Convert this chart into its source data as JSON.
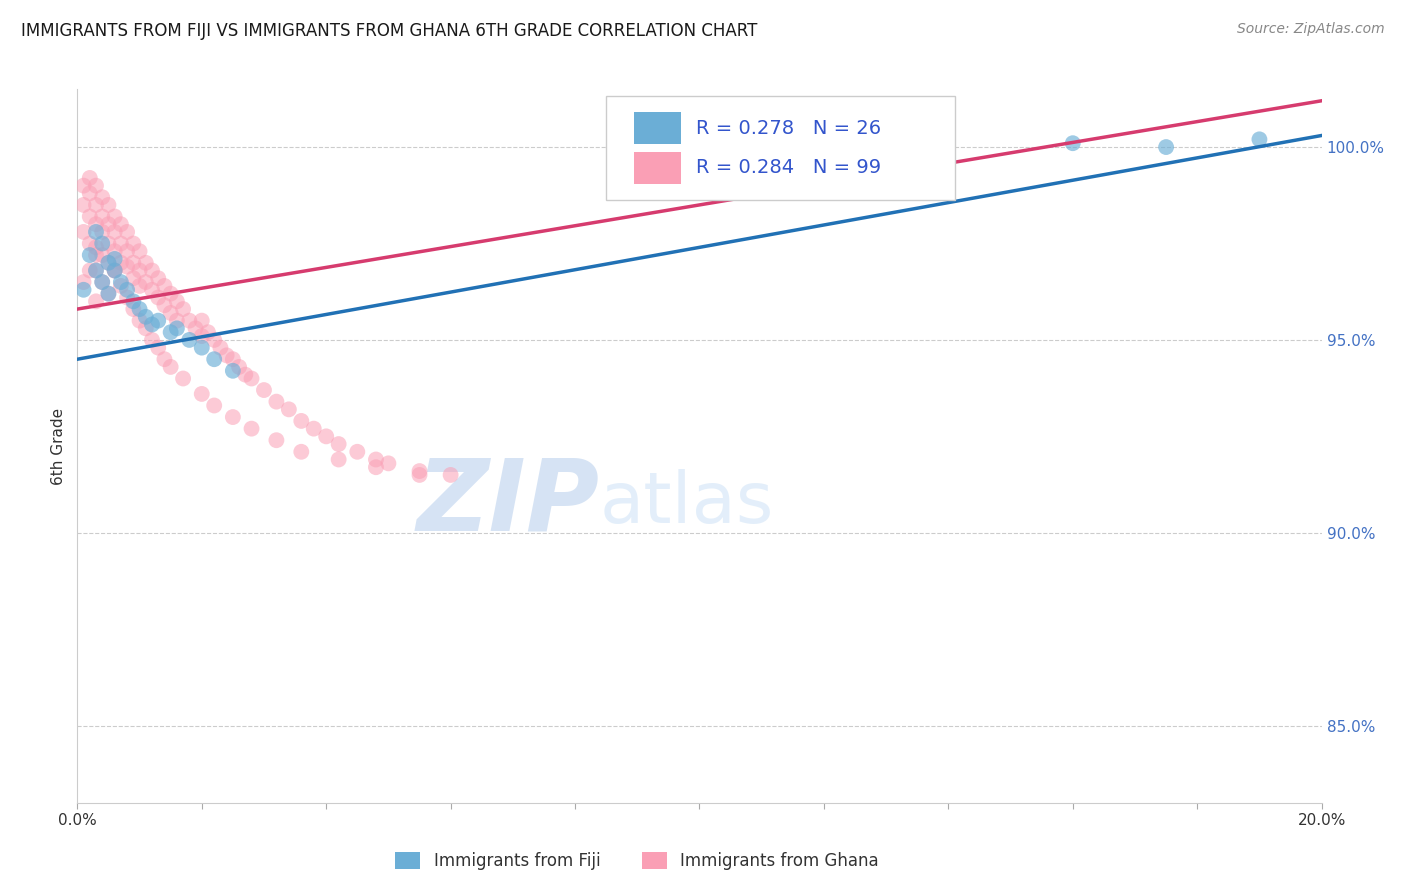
{
  "title": "IMMIGRANTS FROM FIJI VS IMMIGRANTS FROM GHANA 6TH GRADE CORRELATION CHART",
  "source": "Source: ZipAtlas.com",
  "ylabel": "6th Grade",
  "y_ticks": [
    85.0,
    90.0,
    95.0,
    100.0
  ],
  "y_tick_labels": [
    "85.0%",
    "90.0%",
    "95.0%",
    "100.0%"
  ],
  "fiji_color": "#6baed6",
  "ghana_color": "#fa9fb5",
  "fiji_line_color": "#2171b5",
  "ghana_line_color": "#d63b6e",
  "fiji_R": 0.278,
  "fiji_N": 26,
  "ghana_R": 0.284,
  "ghana_N": 99,
  "watermark_zip": "ZIP",
  "watermark_atlas": "atlas",
  "xmin": 0.0,
  "xmax": 0.2,
  "ymin": 83.0,
  "ymax": 101.5,
  "fiji_line_x0": 0.0,
  "fiji_line_x1": 0.2,
  "fiji_line_y0": 94.5,
  "fiji_line_y1": 100.3,
  "ghana_line_x0": 0.0,
  "ghana_line_x1": 0.2,
  "ghana_line_y0": 95.8,
  "ghana_line_y1": 101.2,
  "fiji_scatter_x": [
    0.001,
    0.002,
    0.003,
    0.003,
    0.004,
    0.004,
    0.005,
    0.005,
    0.006,
    0.006,
    0.007,
    0.008,
    0.009,
    0.01,
    0.011,
    0.012,
    0.013,
    0.015,
    0.016,
    0.018,
    0.02,
    0.022,
    0.025,
    0.16,
    0.175,
    0.19
  ],
  "fiji_scatter_y": [
    96.3,
    97.2,
    97.8,
    96.8,
    97.5,
    96.5,
    97.0,
    96.2,
    96.8,
    97.1,
    96.5,
    96.3,
    96.0,
    95.8,
    95.6,
    95.4,
    95.5,
    95.2,
    95.3,
    95.0,
    94.8,
    94.5,
    94.2,
    100.1,
    100.0,
    100.2
  ],
  "ghana_scatter_x": [
    0.001,
    0.001,
    0.001,
    0.002,
    0.002,
    0.002,
    0.002,
    0.003,
    0.003,
    0.003,
    0.003,
    0.003,
    0.004,
    0.004,
    0.004,
    0.004,
    0.005,
    0.005,
    0.005,
    0.005,
    0.006,
    0.006,
    0.006,
    0.006,
    0.007,
    0.007,
    0.007,
    0.008,
    0.008,
    0.008,
    0.009,
    0.009,
    0.009,
    0.01,
    0.01,
    0.01,
    0.011,
    0.011,
    0.012,
    0.012,
    0.013,
    0.013,
    0.014,
    0.014,
    0.015,
    0.015,
    0.016,
    0.016,
    0.017,
    0.018,
    0.019,
    0.02,
    0.02,
    0.021,
    0.022,
    0.023,
    0.024,
    0.025,
    0.026,
    0.027,
    0.028,
    0.03,
    0.032,
    0.034,
    0.036,
    0.038,
    0.04,
    0.042,
    0.045,
    0.048,
    0.05,
    0.055,
    0.06,
    0.001,
    0.002,
    0.003,
    0.003,
    0.004,
    0.005,
    0.006,
    0.007,
    0.008,
    0.009,
    0.01,
    0.011,
    0.012,
    0.013,
    0.014,
    0.015,
    0.017,
    0.02,
    0.022,
    0.025,
    0.028,
    0.032,
    0.036,
    0.042,
    0.048,
    0.055
  ],
  "ghana_scatter_y": [
    99.0,
    98.5,
    97.8,
    99.2,
    98.8,
    98.2,
    97.5,
    99.0,
    98.5,
    98.0,
    97.4,
    96.8,
    98.7,
    98.2,
    97.8,
    97.2,
    98.5,
    98.0,
    97.5,
    97.0,
    98.2,
    97.8,
    97.3,
    96.8,
    98.0,
    97.5,
    97.0,
    97.8,
    97.3,
    96.9,
    97.5,
    97.0,
    96.6,
    97.3,
    96.8,
    96.4,
    97.0,
    96.5,
    96.8,
    96.3,
    96.6,
    96.1,
    96.4,
    95.9,
    96.2,
    95.7,
    96.0,
    95.5,
    95.8,
    95.5,
    95.3,
    95.5,
    95.1,
    95.2,
    95.0,
    94.8,
    94.6,
    94.5,
    94.3,
    94.1,
    94.0,
    93.7,
    93.4,
    93.2,
    92.9,
    92.7,
    92.5,
    92.3,
    92.1,
    91.9,
    91.8,
    91.6,
    91.5,
    96.5,
    96.8,
    97.2,
    96.0,
    96.5,
    96.2,
    96.8,
    96.4,
    96.1,
    95.8,
    95.5,
    95.3,
    95.0,
    94.8,
    94.5,
    94.3,
    94.0,
    93.6,
    93.3,
    93.0,
    92.7,
    92.4,
    92.1,
    91.9,
    91.7,
    91.5
  ]
}
